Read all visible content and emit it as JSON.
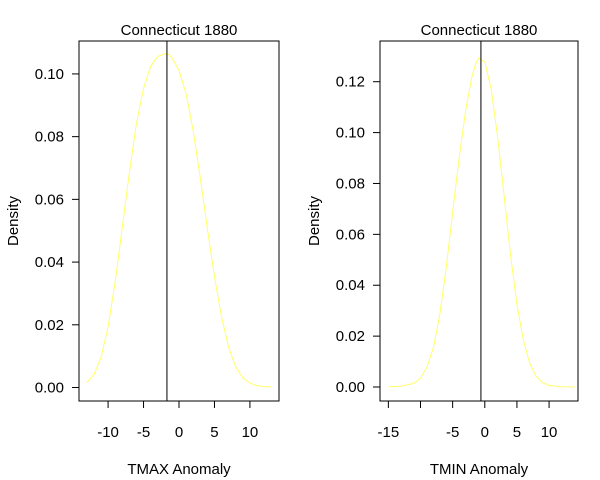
{
  "chart_data": [
    {
      "type": "line",
      "title": "Connecticut 1880",
      "xlabel": "TMAX Anomaly",
      "ylabel": "Density",
      "xlim": [
        -14.1,
        14.1
      ],
      "ylim": [
        -0.0043,
        0.1105
      ],
      "x_ticks": [
        -10,
        -5,
        0,
        5,
        10
      ],
      "x_tick_labels": [
        "-10",
        "-5",
        "0",
        "5",
        "10"
      ],
      "y_ticks": [
        0.0,
        0.02,
        0.04,
        0.06,
        0.08,
        0.1
      ],
      "y_tick_labels": [
        "0.00",
        "0.02",
        "0.04",
        "0.06",
        "0.08",
        "0.10"
      ],
      "vline": -1.7,
      "grid": false,
      "series": [
        {
          "color": "#ffff66",
          "x": [
            -13,
            -12,
            -11,
            -10,
            -9,
            -8,
            -7,
            -6,
            -5,
            -4,
            -3,
            -2,
            -1.5,
            -1,
            0,
            1,
            2,
            3,
            4,
            5,
            6,
            7,
            8,
            9,
            10,
            11,
            12,
            13
          ],
          "y": [
            0.0016,
            0.0041,
            0.0096,
            0.0194,
            0.0337,
            0.0511,
            0.0686,
            0.0842,
            0.0953,
            0.1024,
            0.1056,
            0.1064,
            0.1063,
            0.1052,
            0.1012,
            0.0936,
            0.0818,
            0.0668,
            0.0506,
            0.0353,
            0.0224,
            0.0128,
            0.0066,
            0.0031,
            0.0014,
            0.0006,
            0.0003,
            0.0002
          ]
        }
      ]
    },
    {
      "type": "line",
      "title": "Connecticut 1880",
      "xlabel": "TMIN Anomaly",
      "ylabel": "Density",
      "xlim": [
        -16.3,
        14.5
      ],
      "ylim": [
        -0.0055,
        0.136
      ],
      "x_ticks": [
        -15,
        -10,
        -5,
        0,
        5,
        10
      ],
      "x_tick_labels": [
        "-15",
        "",
        "-5",
        "0",
        "5",
        "10"
      ],
      "y_ticks": [
        0.0,
        0.02,
        0.04,
        0.06,
        0.08,
        0.1,
        0.12
      ],
      "y_tick_labels": [
        "0.00",
        "0.02",
        "0.04",
        "0.06",
        "0.08",
        "0.10",
        "0.12"
      ],
      "vline": -0.6,
      "grid": false,
      "series": [
        {
          "color": "#ffff66",
          "x": [
            -15,
            -13,
            -11,
            -10,
            -9,
            -8,
            -7,
            -6,
            -5,
            -4,
            -3,
            -2,
            -1.5,
            -1,
            0,
            1,
            2,
            3,
            4,
            5,
            6,
            7,
            8,
            9,
            10,
            12,
            14
          ],
          "y": [
            0.0001,
            0.0003,
            0.0015,
            0.0035,
            0.0078,
            0.0155,
            0.0285,
            0.0468,
            0.0685,
            0.09,
            0.1083,
            0.1219,
            0.1265,
            0.1292,
            0.1278,
            0.1171,
            0.0984,
            0.0752,
            0.052,
            0.0325,
            0.0183,
            0.0092,
            0.0041,
            0.0017,
            0.0006,
            0.0001,
            0.0
          ]
        }
      ]
    }
  ]
}
